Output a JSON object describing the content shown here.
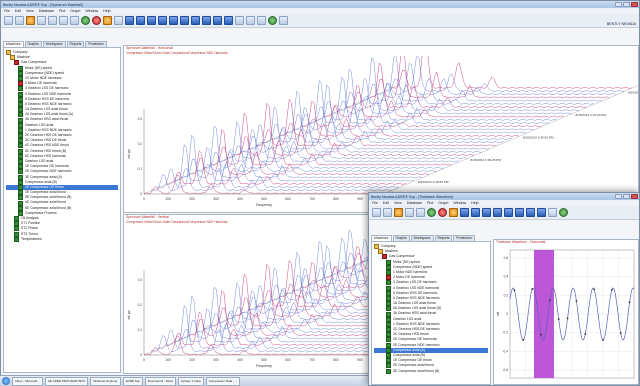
{
  "main_window": {
    "title": "Bently Nevada ADRE® Sxp  - [Spectrum Waterfall]",
    "title_right": "",
    "menu": [
      "File",
      "Edit",
      "View",
      "Database",
      "Plot",
      "Graph",
      "Window",
      "Help"
    ],
    "tabs": [
      "Machines",
      "Graphs",
      "Workspace",
      "Reports",
      "Protection"
    ],
    "logo_text": "BENTLY NEVADA",
    "tree": [
      {
        "label": "Company",
        "icon": "fold",
        "indent": 0
      },
      {
        "label": "Machine",
        "icon": "fold",
        "indent": 1
      },
      {
        "label": "Gas Compressor",
        "icon": "red",
        "indent": 2
      },
      {
        "label": "Motor (DE) speed",
        "icon": "ok",
        "indent": 3
      },
      {
        "label": "Compressor (NDE) speed",
        "icon": "ok",
        "indent": 3
      },
      {
        "label": "1X Motor NDE harmonic",
        "icon": "ok",
        "indent": 3
      },
      {
        "label": "2 Motor DE harmonic",
        "icon": "red",
        "indent": 3
      },
      {
        "label": "3 Gearbox LSS DE harmonic",
        "icon": "ok",
        "indent": 3
      },
      {
        "label": "4 Gearbox LSS NDE harmonic",
        "icon": "ok",
        "indent": 3
      },
      {
        "label": "5 Gearbox HSS DE harmonic",
        "icon": "ok",
        "indent": 3
      },
      {
        "label": "6 Gearbox HSS NDE harmonic",
        "icon": "ok",
        "indent": 3
      },
      {
        "label": "1A Gearbox LSS axial thrust",
        "icon": "ok",
        "indent": 3
      },
      {
        "label": "2A Gearbox LSS axial thrust (A)",
        "icon": "ok",
        "indent": 3
      },
      {
        "label": "3A Gearbox HSS axial thrust",
        "icon": "ok",
        "indent": 3
      },
      {
        "label": "Gearbox LSS axial",
        "icon": "ok",
        "indent": 3
      },
      {
        "label": "1 Gearbox HSS NDE harmonic",
        "icon": "ok",
        "indent": 3
      },
      {
        "label": "2C Gearbox HSS DE harmonic",
        "icon": "ok",
        "indent": 3
      },
      {
        "label": "3C Gearbox HSS DE thrust",
        "icon": "ok",
        "indent": 3
      },
      {
        "label": "4C Gearbox HSS NDE thrust",
        "icon": "ok",
        "indent": 3
      },
      {
        "label": "5C Gearbox HSS thrust (B)",
        "icon": "ok",
        "indent": 3
      },
      {
        "label": "6C Gearbox HSS harmonic",
        "icon": "ok",
        "indent": 3
      },
      {
        "label": "Gearbox LSS axial",
        "icon": "ok",
        "indent": 3
      },
      {
        "label": "1E Compressor DE harmonic",
        "icon": "ok",
        "indent": 3
      },
      {
        "label": "2E Compressor NDE harmonic",
        "icon": "ok",
        "indent": 3
      },
      {
        "label": "3E Compressor axial (A)",
        "icon": "ok",
        "indent": 3
      },
      {
        "label": "Compressor axial (B)",
        "icon": "ok",
        "indent": 3
      },
      {
        "label": "1E Compressor DE thrust",
        "icon": "ok",
        "indent": 3,
        "selected": true
      },
      {
        "label": "2E Compressor axial thrust",
        "icon": "ok",
        "indent": 3
      },
      {
        "label": "3E Compressor axial thrust (B)",
        "icon": "ok",
        "indent": 3
      },
      {
        "label": "4E Compressor axial thrust",
        "icon": "ok",
        "indent": 3
      },
      {
        "label": "5E Compressor axial thrust (B)",
        "icon": "ok",
        "indent": 3
      },
      {
        "label": "Compressor Process",
        "icon": "ok",
        "indent": 3
      },
      {
        "label": "Oil Analysis",
        "icon": "ok",
        "indent": 2
      },
      {
        "label": "ST1 Position",
        "icon": "ok",
        "indent": 2
      },
      {
        "label": "ST2 Phase",
        "icon": "ok",
        "indent": 2
      },
      {
        "label": "ST3 Thrust",
        "icon": "ok",
        "indent": 2
      },
      {
        "label": "Temperatures",
        "icon": "ok",
        "indent": 2
      }
    ],
    "top_plot": {
      "title": "Spectrum Waterfall - Horizontal",
      "subtitle": "Compressor Motor/Driver Data Comparison/Compressor NDE Harmonic",
      "date_labels": [
        "8/15/2013 4:31:45 PM",
        "8/15/2013 4:15:40 PM",
        "8/15/2013 3:45:05 PM",
        "8/15/2013 3:30:25 PM",
        "8/15/2013 3:15:05 PM"
      ],
      "x_ticks": [
        "0",
        "100",
        "200",
        "300",
        "400",
        "500",
        "600",
        "700",
        "800",
        "900",
        "1000"
      ],
      "y_ticks": [
        "0",
        "0.1",
        "0.2",
        "0.3"
      ],
      "x_label": "Frequency",
      "y_label": "mil pp"
    },
    "bottom_plot": {
      "title": "Spectrum Waterfall - Vertical",
      "subtitle": "Compressor Motor/Driver Data Comparison/Compressor NDE Harmonic",
      "x_ticks": [
        "0",
        "100",
        "200",
        "300",
        "400",
        "500",
        "600",
        "700",
        "800",
        "900",
        "1000"
      ],
      "y_ticks": [
        "0",
        "0.1",
        "0.2",
        "0.3"
      ],
      "x_label": "Frequency",
      "y_label": "mil pp"
    }
  },
  "front_window": {
    "title": "Bently Nevada ADRE® Sxp  - [Timebase Waveform]",
    "menu": [
      "File",
      "Edit",
      "View",
      "Database",
      "Plot",
      "Graph",
      "Window",
      "Help"
    ],
    "tabs": [
      "Machines",
      "Graphs",
      "Workspace",
      "Reports",
      "Protection"
    ],
    "tree": [
      {
        "label": "Company",
        "icon": "fold",
        "indent": 0
      },
      {
        "label": "Machine",
        "icon": "fold",
        "indent": 1
      },
      {
        "label": "Gas Compressor",
        "icon": "red",
        "indent": 2
      },
      {
        "label": "Motor (DE) speed",
        "icon": "ok",
        "indent": 3
      },
      {
        "label": "Compressor (NDE) speed",
        "icon": "ok",
        "indent": 3
      },
      {
        "label": "1 Motor NDE harmonic",
        "icon": "ok",
        "indent": 3
      },
      {
        "label": "2 Motor DE harmonic",
        "icon": "red",
        "indent": 3
      },
      {
        "label": "3 Gearbox LSS DE harmonic",
        "icon": "ok",
        "indent": 3
      },
      {
        "label": "4 Gearbox LSS NDE harmonic",
        "icon": "ok",
        "indent": 3
      },
      {
        "label": "5 Gearbox HSS DE harmonic",
        "icon": "ok",
        "indent": 3
      },
      {
        "label": "6 Gearbox HSS NDE harmonic",
        "icon": "ok",
        "indent": 3
      },
      {
        "label": "1A Gearbox LSS axial thrust",
        "icon": "ok",
        "indent": 3
      },
      {
        "label": "2A Gearbox LSS axial thrust (B)",
        "icon": "ok",
        "indent": 3
      },
      {
        "label": "3A Gearbox HSS axial thrust",
        "icon": "ok",
        "indent": 3
      },
      {
        "label": "Gearbox LSS axial",
        "icon": "ok",
        "indent": 3
      },
      {
        "label": "1 Gearbox HSS NDE harmonic",
        "icon": "ok",
        "indent": 3
      },
      {
        "label": "2C Gearbox HSS DE harmonic",
        "icon": "ok",
        "indent": 3
      },
      {
        "label": "3C Gearbox HSS thrust",
        "icon": "ok",
        "indent": 3
      },
      {
        "label": "1E Compressor DE harmonic",
        "icon": "ok",
        "indent": 3
      },
      {
        "label": "2E Compressor NDE harmonic",
        "icon": "ok",
        "indent": 3
      },
      {
        "label": "Compressor axial (A)",
        "icon": "ok",
        "indent": 3,
        "selected": true
      },
      {
        "label": "Compressor axial (B)",
        "icon": "ok",
        "indent": 3
      },
      {
        "label": "1E Compressor DE thrust",
        "icon": "ok",
        "indent": 3
      },
      {
        "label": "2E Compressor axial thrust",
        "icon": "ok",
        "indent": 3
      },
      {
        "label": "3E Compressor axial thrust (B)",
        "icon": "ok",
        "indent": 3
      }
    ],
    "plot": {
      "title": "Timebase Waveform - Horizontal",
      "y_ticks": [
        "0.6",
        "0.4",
        "0.2",
        "0",
        "-0.2",
        "-0.4",
        "-0.6"
      ],
      "y_label": "mil"
    }
  },
  "taskbar": {
    "tasks": [
      "Start",
      "Inbox - Microsoft...",
      "GE ADRE PROGRAM INFO",
      "Windows Explorer",
      "ADRE Sxp",
      "Document1 - Word",
      "System 1 Data",
      "Compressor Data - ..."
    ]
  }
}
